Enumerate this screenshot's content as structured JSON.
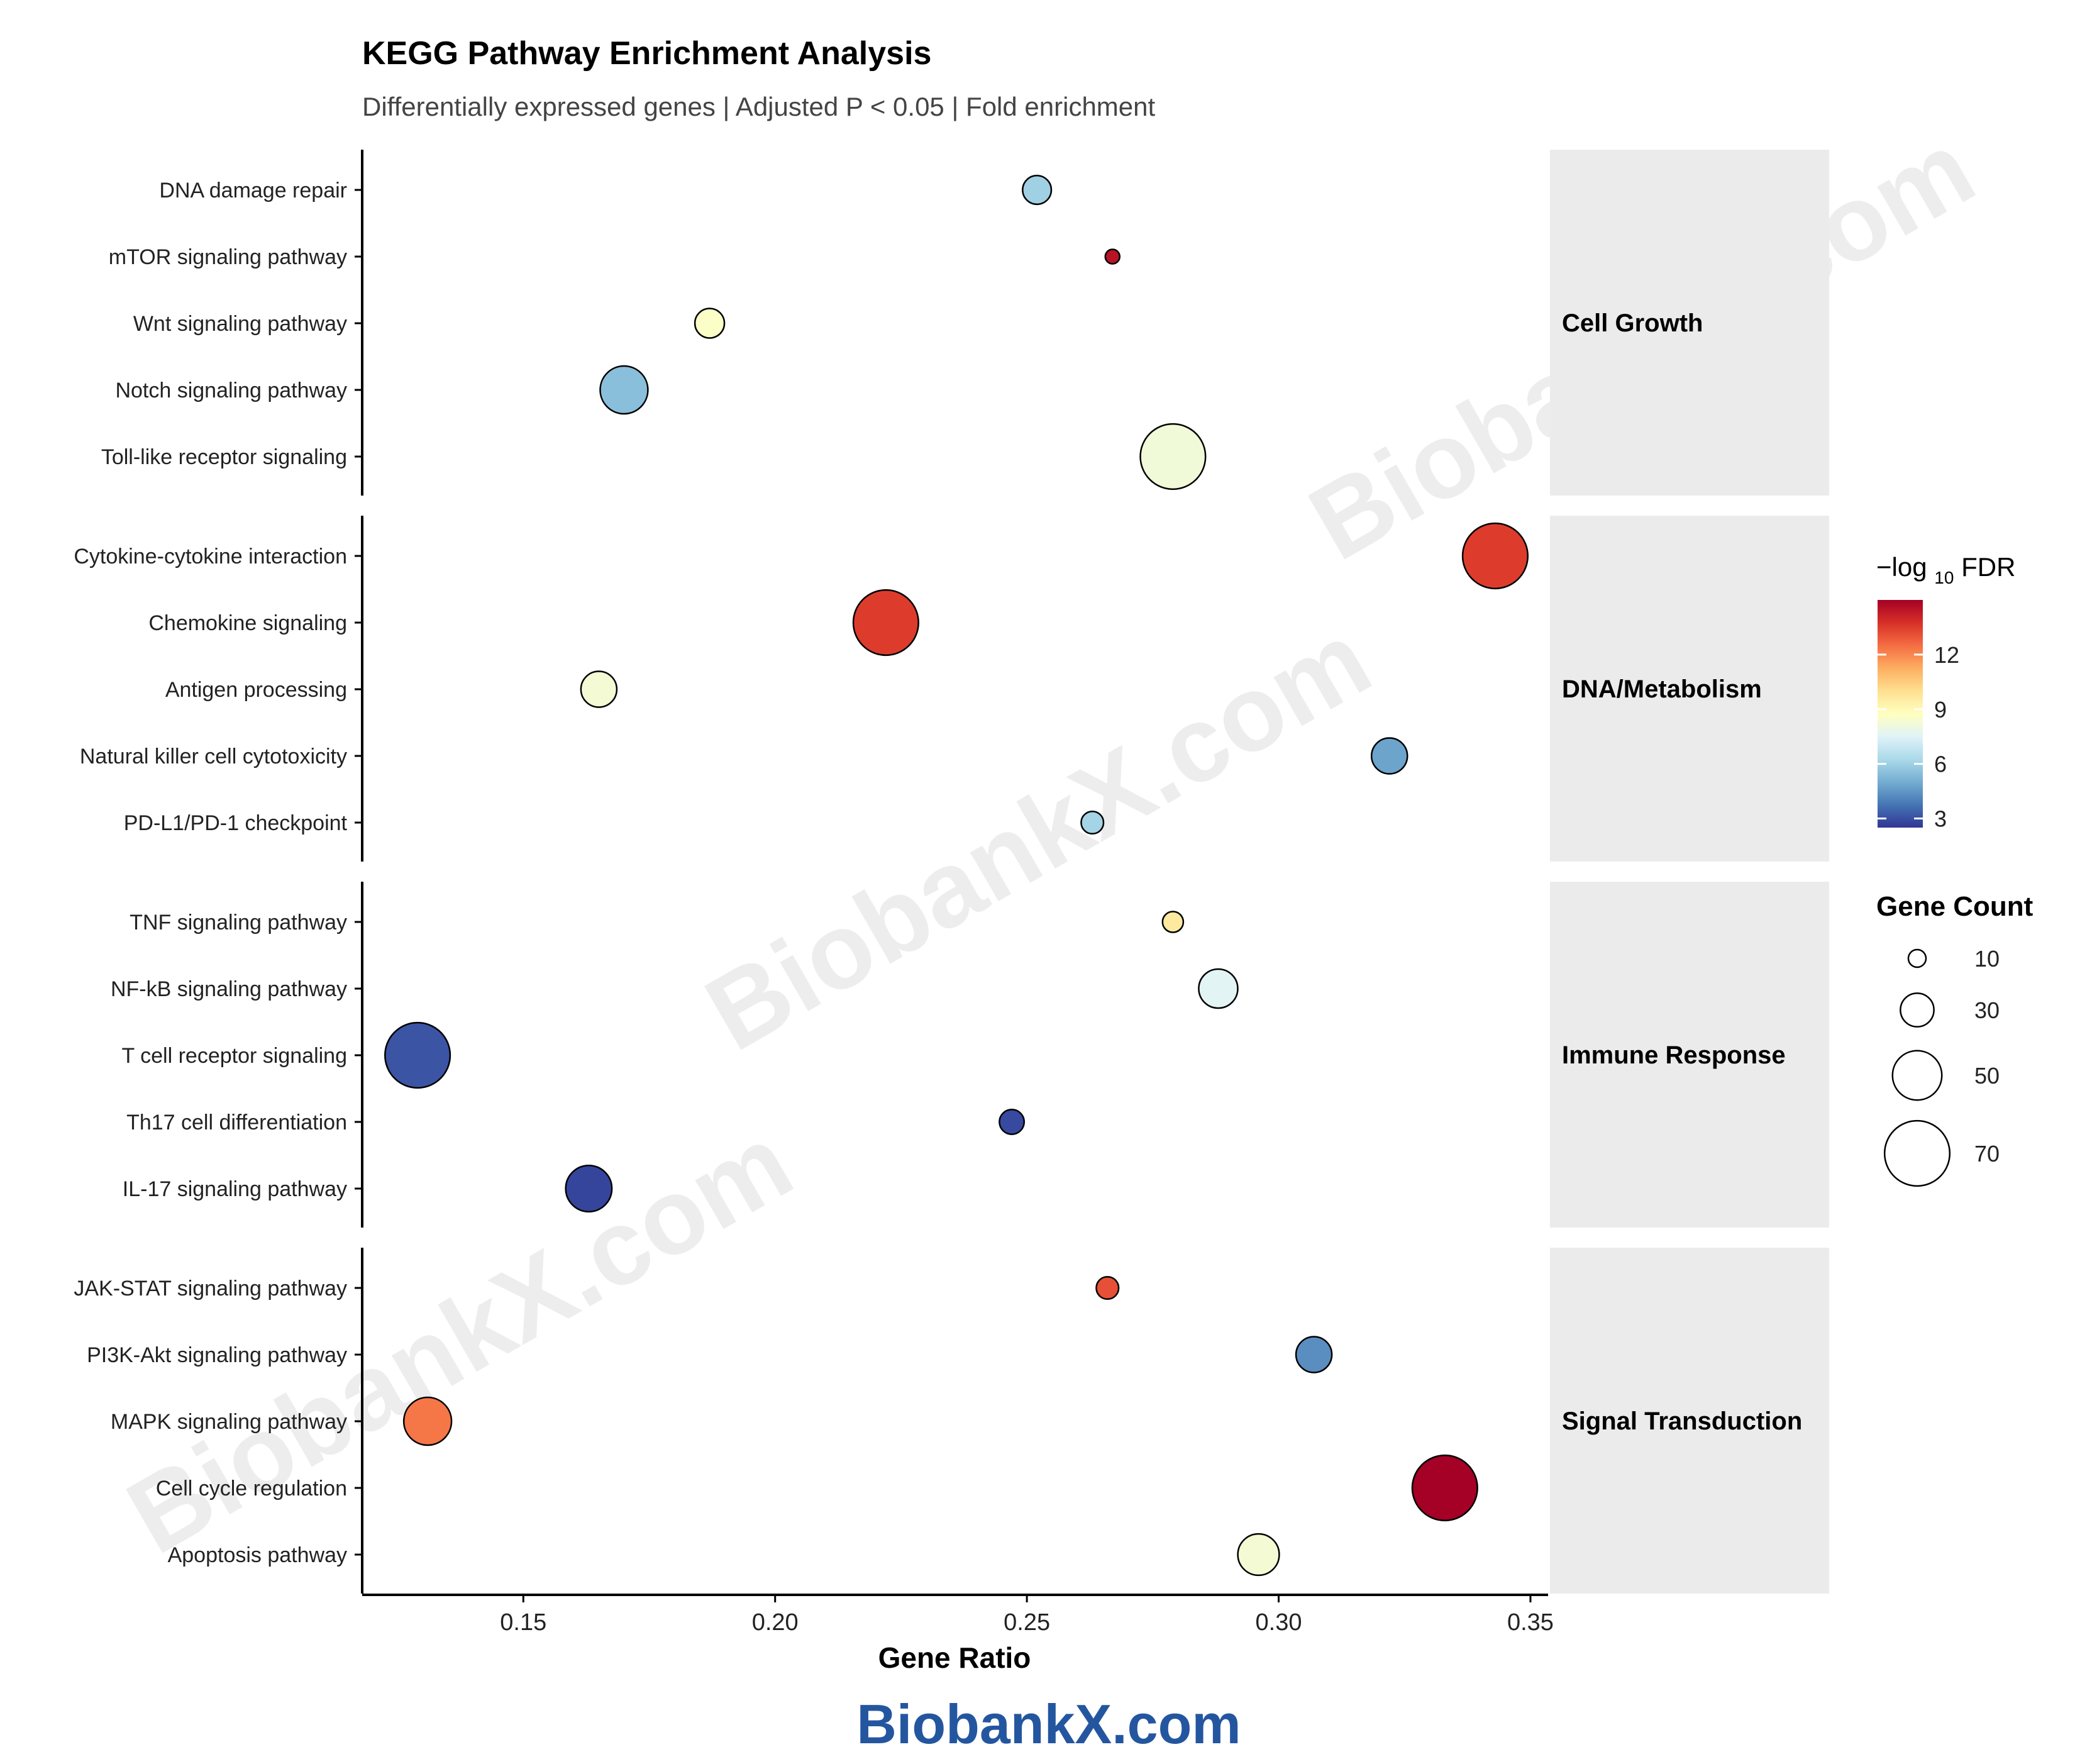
{
  "chart_data": {
    "type": "scatter",
    "title": "KEGG Pathway Enrichment Analysis",
    "subtitle": "Differentially expressed genes | Adjusted P < 0.05 | Fold enrichment",
    "xlabel": "Gene Ratio",
    "xlim": [
      0.118,
      0.3535
    ],
    "xticks": [
      0.15,
      0.2,
      0.25,
      0.3,
      0.35
    ],
    "xtick_labels": [
      "0.15",
      "0.20",
      "0.25",
      "0.30",
      "0.35"
    ],
    "grid": false,
    "color_legend": {
      "title_prefix": "−log",
      "title_sub": "10",
      "title_suffix": " FDR",
      "min": 2.5,
      "max": 15,
      "ticks": [
        3,
        6,
        9,
        12
      ],
      "tick_labels": [
        "3",
        "6",
        "9",
        "12"
      ],
      "stops": [
        "#313695",
        "#4575b4",
        "#74add1",
        "#abd9e9",
        "#e0f3f8",
        "#ffffbf",
        "#fee090",
        "#fdae61",
        "#f46d43",
        "#d73027",
        "#a50026"
      ]
    },
    "size_legend": {
      "title": "Gene Count",
      "values": [
        10,
        30,
        50,
        70
      ],
      "labels": [
        "10",
        "30",
        "50",
        "70"
      ]
    },
    "groups": [
      {
        "name": "Cell Growth",
        "terms": [
          {
            "pathway": "DNA damage repair",
            "gene_ratio": 0.252,
            "fdr": 6.0,
            "count": 24
          },
          {
            "pathway": "mTOR signaling pathway",
            "gene_ratio": 0.267,
            "fdr": 14.5,
            "count": 6
          },
          {
            "pathway": "Wnt signaling pathway",
            "gene_ratio": 0.187,
            "fdr": 8.6,
            "count": 25
          },
          {
            "pathway": "Notch signaling pathway",
            "gene_ratio": 0.17,
            "fdr": 5.5,
            "count": 48
          },
          {
            "pathway": "Toll-like receptor signaling",
            "gene_ratio": 0.279,
            "fdr": 8.2,
            "count": 70
          }
        ]
      },
      {
        "name": "DNA/Metabolism",
        "terms": [
          {
            "pathway": "Cytokine-cytokine interaction",
            "gene_ratio": 0.343,
            "fdr": 13.5,
            "count": 70
          },
          {
            "pathway": "Chemokine signaling",
            "gene_ratio": 0.222,
            "fdr": 13.5,
            "count": 70
          },
          {
            "pathway": "Antigen processing",
            "gene_ratio": 0.165,
            "fdr": 8.3,
            "count": 33
          },
          {
            "pathway": "Natural killer cell cytotoxicity",
            "gene_ratio": 0.322,
            "fdr": 4.8,
            "count": 33
          },
          {
            "pathway": "PD-L1/PD-1 checkpoint",
            "gene_ratio": 0.263,
            "fdr": 6.1,
            "count": 16
          }
        ]
      },
      {
        "name": "Immune Response",
        "terms": [
          {
            "pathway": "TNF signaling pathway",
            "gene_ratio": 0.279,
            "fdr": 9.6,
            "count": 14
          },
          {
            "pathway": "NF-kB signaling pathway",
            "gene_ratio": 0.288,
            "fdr": 7.6,
            "count": 37
          },
          {
            "pathway": "T cell receptor signaling",
            "gene_ratio": 0.129,
            "fdr": 3.1,
            "count": 70
          },
          {
            "pathway": "Th17 cell differentiation",
            "gene_ratio": 0.247,
            "fdr": 2.9,
            "count": 19
          },
          {
            "pathway": "IL-17 signaling pathway",
            "gene_ratio": 0.163,
            "fdr": 2.8,
            "count": 46
          }
        ]
      },
      {
        "name": "Signal Transduction",
        "terms": [
          {
            "pathway": "JAK-STAT signaling pathway",
            "gene_ratio": 0.266,
            "fdr": 13.1,
            "count": 16
          },
          {
            "pathway": "PI3K-Akt signaling pathway",
            "gene_ratio": 0.307,
            "fdr": 4.3,
            "count": 33
          },
          {
            "pathway": "MAPK signaling pathway",
            "gene_ratio": 0.131,
            "fdr": 12.3,
            "count": 48
          },
          {
            "pathway": "Cell cycle regulation",
            "gene_ratio": 0.333,
            "fdr": 15.0,
            "count": 70
          },
          {
            "pathway": "Apoptosis pathway",
            "gene_ratio": 0.296,
            "fdr": 8.3,
            "count": 40
          }
        ]
      }
    ]
  },
  "watermark": "BiobankX.com",
  "footer_brand": "BiobankX.com",
  "colors": {
    "background": "#ffffff",
    "strip": "#ebebeb",
    "axis": "#000000",
    "point_stroke": "#000000",
    "watermark": "#cccccc",
    "brand": "#2456a0"
  }
}
